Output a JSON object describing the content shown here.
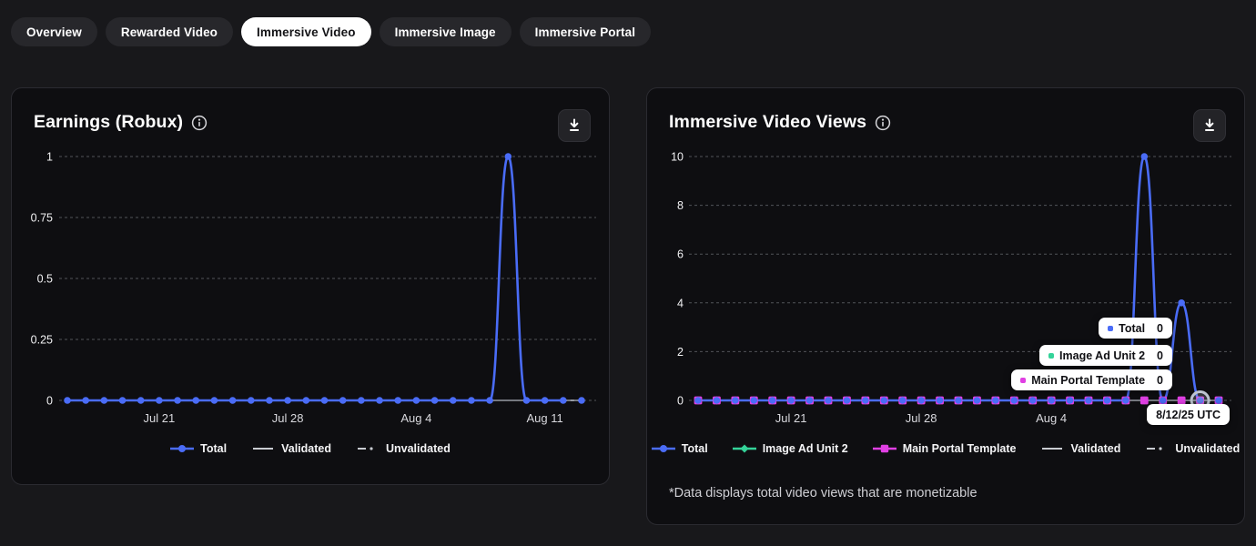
{
  "tabs": [
    {
      "label": "Overview",
      "active": false
    },
    {
      "label": "Rewarded Video",
      "active": false
    },
    {
      "label": "Immersive Video",
      "active": true
    },
    {
      "label": "Immersive Image",
      "active": false
    },
    {
      "label": "Immersive Portal",
      "active": false
    }
  ],
  "colors": {
    "accent_blue": "#4a6cf7",
    "green": "#34d399",
    "magenta": "#e03fe3",
    "validated_gray": "#75787f",
    "legend_gray": "#c9ccd2",
    "page_bg": "#18181b",
    "card_bg": "#0e0e11"
  },
  "cards": [
    {
      "title": "Earnings (Robux)",
      "icons": {
        "info": "info-icon",
        "download": "download-icon"
      },
      "chart_data": {
        "type": "line",
        "x": [
          "Jul 16",
          "Jul 17",
          "Jul 18",
          "Jul 19",
          "Jul 20",
          "Jul 21",
          "Jul 22",
          "Jul 23",
          "Jul 24",
          "Jul 25",
          "Jul 26",
          "Jul 27",
          "Jul 28",
          "Jul 29",
          "Jul 30",
          "Jul 31",
          "Aug 1",
          "Aug 2",
          "Aug 3",
          "Aug 4",
          "Aug 5",
          "Aug 6",
          "Aug 7",
          "Aug 8",
          "Aug 9",
          "Aug 10",
          "Aug 11",
          "Aug 12",
          "Aug 13"
        ],
        "xticks": [
          {
            "index": 5,
            "label": "Jul 21"
          },
          {
            "index": 12,
            "label": "Jul 28"
          },
          {
            "index": 19,
            "label": "Aug 4"
          },
          {
            "index": 26,
            "label": "Aug 11"
          }
        ],
        "ylim": [
          0,
          1
        ],
        "yticks": [
          0,
          0.25,
          0.5,
          0.75,
          1
        ],
        "ytick_labels": [
          "0",
          "0.25",
          "0.5",
          "0.75",
          "1"
        ],
        "grid": "dashed-horizontal",
        "legend_position": "bottom",
        "series": [
          {
            "name": "Total",
            "color": "#4a6cf7",
            "legend": "circle",
            "values": [
              0,
              0,
              0,
              0,
              0,
              0,
              0,
              0,
              0,
              0,
              0,
              0,
              0,
              0,
              0,
              0,
              0,
              0,
              0,
              0,
              0,
              0,
              0,
              0,
              1,
              0,
              0,
              0,
              0
            ]
          },
          {
            "name": "Validated",
            "color": "#75787f",
            "legend": "solid",
            "values": [
              0,
              0,
              0,
              0,
              0,
              0,
              0,
              0,
              0,
              0,
              0,
              0,
              0,
              0,
              0,
              0,
              0,
              0,
              0,
              0,
              0,
              0,
              0,
              0,
              0,
              0,
              0,
              0,
              0
            ]
          },
          {
            "name": "Unvalidated",
            "color": "#c9ccd2",
            "legend": "dashdot",
            "values": null
          }
        ],
        "last_segment_dashed": true
      }
    },
    {
      "title": "Immersive Video Views",
      "icons": {
        "info": "info-icon",
        "download": "download-icon"
      },
      "footnote": "*Data displays total video views that are monetizable",
      "chart_data": {
        "type": "line",
        "x": [
          "Jul 16",
          "Jul 17",
          "Jul 18",
          "Jul 19",
          "Jul 20",
          "Jul 21",
          "Jul 22",
          "Jul 23",
          "Jul 24",
          "Jul 25",
          "Jul 26",
          "Jul 27",
          "Jul 28",
          "Jul 29",
          "Jul 30",
          "Jul 31",
          "Aug 1",
          "Aug 2",
          "Aug 3",
          "Aug 4",
          "Aug 5",
          "Aug 6",
          "Aug 7",
          "Aug 8",
          "Aug 9",
          "Aug 10",
          "Aug 11",
          "Aug 12",
          "Aug 13"
        ],
        "xticks": [
          {
            "index": 5,
            "label": "Jul 21"
          },
          {
            "index": 12,
            "label": "Jul 28"
          },
          {
            "index": 19,
            "label": "Aug 4"
          },
          {
            "index": 26,
            "label": "Aug 11"
          }
        ],
        "ylim": [
          0,
          10
        ],
        "yticks": [
          0,
          2,
          4,
          6,
          8,
          10
        ],
        "ytick_labels": [
          "0",
          "2",
          "4",
          "6",
          "8",
          "10"
        ],
        "grid": "dashed-horizontal",
        "legend_position": "bottom",
        "series": [
          {
            "name": "Total",
            "color": "#4a6cf7",
            "legend": "circle",
            "values": [
              0,
              0,
              0,
              0,
              0,
              0,
              0,
              0,
              0,
              0,
              0,
              0,
              0,
              0,
              0,
              0,
              0,
              0,
              0,
              0,
              0,
              0,
              0,
              0,
              10,
              0,
              4,
              0,
              0
            ]
          },
          {
            "name": "Image Ad Unit 2",
            "color": "#34d399",
            "legend": "diamond",
            "values": [
              0,
              0,
              0,
              0,
              0,
              0,
              0,
              0,
              0,
              0,
              0,
              0,
              0,
              0,
              0,
              0,
              0,
              0,
              0,
              0,
              0,
              0,
              0,
              0,
              0,
              0,
              0,
              0,
              0
            ]
          },
          {
            "name": "Main Portal Template",
            "color": "#e03fe3",
            "legend": "square",
            "values": [
              0,
              0,
              0,
              0,
              0,
              0,
              0,
              0,
              0,
              0,
              0,
              0,
              0,
              0,
              0,
              0,
              0,
              0,
              0,
              0,
              0,
              0,
              0,
              0,
              0,
              0,
              0,
              0,
              0
            ]
          },
          {
            "name": "Validated",
            "color": "#75787f",
            "legend": "solid",
            "values": [
              0,
              0,
              0,
              0,
              0,
              0,
              0,
              0,
              0,
              0,
              0,
              0,
              0,
              0,
              0,
              0,
              0,
              0,
              0,
              0,
              0,
              0,
              0,
              0,
              0,
              0,
              0,
              0,
              0
            ]
          },
          {
            "name": "Unvalidated",
            "color": "#c9ccd2",
            "legend": "dashdot",
            "values": null
          }
        ],
        "last_segment_dashed": true,
        "hover": {
          "index": 27
        }
      },
      "tooltip": {
        "date_label": "8/12/25 UTC",
        "rows": [
          {
            "label": "Total",
            "value": "0",
            "color": "#4a6cf7"
          },
          {
            "label": "Image Ad Unit 2",
            "value": "0",
            "color": "#34d399"
          },
          {
            "label": "Main Portal Template",
            "value": "0",
            "color": "#e03fe3"
          }
        ]
      }
    }
  ]
}
